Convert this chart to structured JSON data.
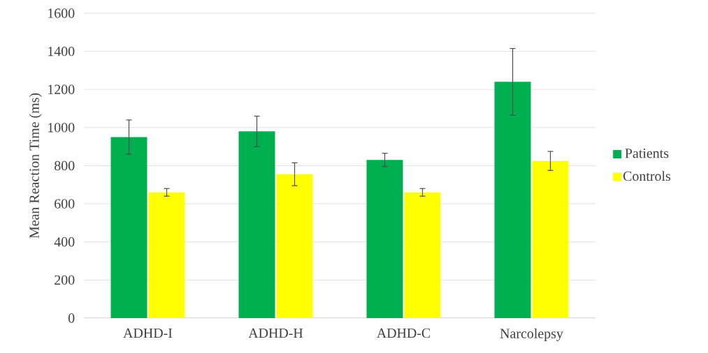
{
  "chart_data": {
    "type": "bar",
    "ylabel": "Mean Reaction Time (ms)",
    "categories": [
      "ADHD-I",
      "ADHD-H",
      "ADHD-C",
      "Narcolepsy"
    ],
    "series": [
      {
        "name": "Patients",
        "color": "#00b050",
        "values": [
          950,
          980,
          830,
          1240
        ],
        "errors": [
          90,
          80,
          35,
          175
        ]
      },
      {
        "name": "Controls",
        "color": "#ffff00",
        "values": [
          660,
          755,
          660,
          825
        ],
        "errors": [
          20,
          60,
          20,
          50
        ]
      }
    ],
    "ylim": [
      0,
      1600
    ],
    "yticks": [
      0,
      200,
      400,
      600,
      800,
      1000,
      1200,
      1400,
      1600
    ],
    "grid": "y",
    "legend": "right"
  }
}
